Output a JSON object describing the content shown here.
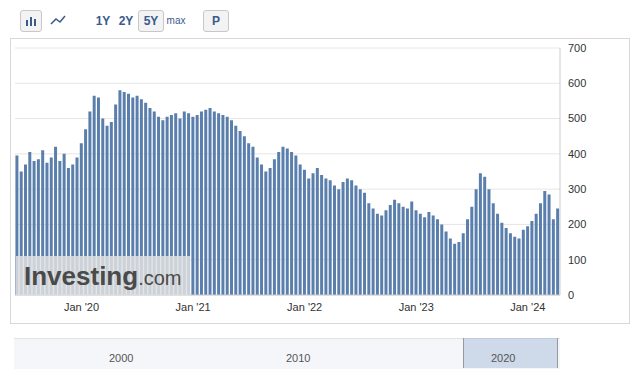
{
  "chart_data": {
    "type": "bar",
    "categories": [
      null,
      null,
      null,
      null,
      null,
      null,
      null,
      null,
      null,
      null,
      null,
      null,
      null,
      null,
      null,
      "Jan '20",
      null,
      null,
      null,
      null,
      null,
      null,
      null,
      null,
      null,
      null,
      null,
      null,
      null,
      null,
      null,
      null,
      null,
      null,
      null,
      null,
      null,
      null,
      null,
      null,
      null,
      "Jan '21",
      null,
      null,
      null,
      null,
      null,
      null,
      null,
      null,
      null,
      null,
      null,
      null,
      null,
      null,
      null,
      null,
      null,
      null,
      null,
      null,
      null,
      null,
      null,
      null,
      null,
      "Jan '22",
      null,
      null,
      null,
      null,
      null,
      null,
      null,
      null,
      null,
      null,
      null,
      null,
      null,
      null,
      null,
      null,
      null,
      null,
      null,
      null,
      null,
      null,
      null,
      null,
      null,
      "Jan '23",
      null,
      null,
      null,
      null,
      null,
      null,
      null,
      null,
      null,
      null,
      null,
      null,
      null,
      null,
      null,
      null,
      null,
      null,
      null,
      null,
      null,
      null,
      null,
      null,
      null,
      "Jan '24",
      null,
      null,
      null,
      null,
      null,
      null,
      null
    ],
    "values": [
      395,
      350,
      370,
      405,
      380,
      385,
      410,
      375,
      390,
      420,
      380,
      400,
      360,
      370,
      390,
      430,
      470,
      520,
      565,
      560,
      500,
      480,
      490,
      540,
      580,
      575,
      570,
      560,
      565,
      555,
      545,
      530,
      520,
      505,
      495,
      505,
      510,
      515,
      500,
      520,
      515,
      505,
      510,
      520,
      525,
      530,
      520,
      515,
      510,
      505,
      495,
      480,
      465,
      450,
      430,
      420,
      390,
      370,
      350,
      360,
      385,
      405,
      420,
      415,
      405,
      395,
      370,
      355,
      330,
      345,
      360,
      340,
      330,
      325,
      310,
      300,
      320,
      330,
      325,
      310,
      300,
      290,
      260,
      245,
      230,
      225,
      240,
      255,
      270,
      260,
      250,
      245,
      265,
      240,
      230,
      220,
      235,
      225,
      215,
      200,
      180,
      160,
      145,
      150,
      175,
      215,
      250,
      300,
      345,
      335,
      300,
      260,
      230,
      205,
      190,
      175,
      165,
      160,
      185,
      195,
      210,
      230,
      260,
      295,
      285,
      215,
      245
    ],
    "color": "#5b7fac",
    "ylim": [
      0,
      700
    ],
    "yticks": [
      0,
      100,
      200,
      300,
      400,
      500,
      600,
      700
    ],
    "grid": true
  },
  "toolbar": [
    "1Y",
    "2Y",
    "5Y",
    "max",
    "P"
  ],
  "watermark": "Investing.com",
  "navigator": {
    "labels": [
      "2000",
      "2010",
      "2020"
    ]
  }
}
